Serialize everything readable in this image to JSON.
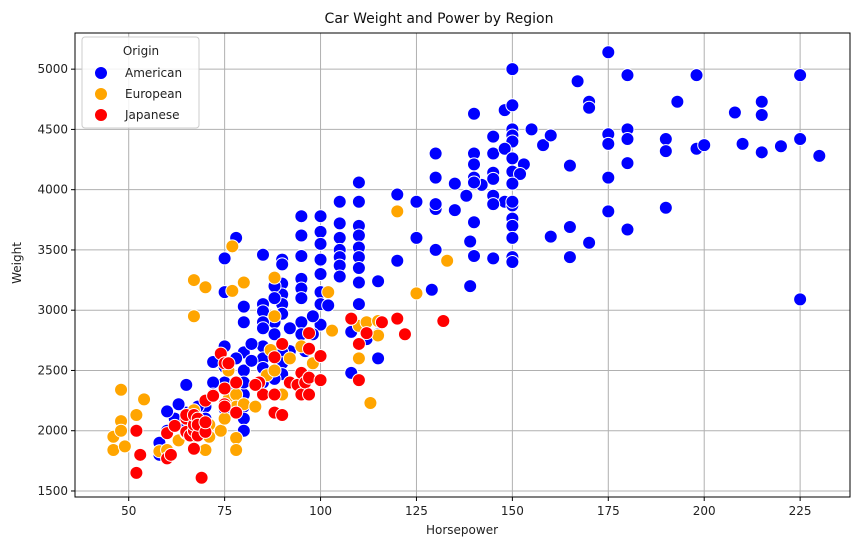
{
  "chart_data": {
    "type": "scatter",
    "title": "Car Weight and Power by Region",
    "xlabel": "Horsepower",
    "ylabel": "Weight",
    "xlim": [
      36,
      238
    ],
    "ylim": [
      1450,
      5300
    ],
    "xticks": [
      50,
      75,
      100,
      125,
      150,
      175,
      200,
      225
    ],
    "yticks": [
      1500,
      2000,
      2500,
      3000,
      3500,
      4000,
      4500,
      5000
    ],
    "grid": true,
    "legend": {
      "title": "Origin",
      "placement": "top-left"
    },
    "series": [
      {
        "name": "American",
        "color": "#0000ff",
        "points": [
          [
            150,
            5000
          ],
          [
            175,
            5140
          ],
          [
            225,
            4950
          ],
          [
            198,
            4950
          ],
          [
            180,
            4950
          ],
          [
            215,
            4730
          ],
          [
            193,
            4730
          ],
          [
            208,
            4640
          ],
          [
            215,
            4620
          ],
          [
            167,
            4900
          ],
          [
            170,
            4730
          ],
          [
            170,
            4680
          ],
          [
            140,
            4630
          ],
          [
            148,
            4660
          ],
          [
            150,
            4700
          ],
          [
            155,
            4500
          ],
          [
            150,
            4500
          ],
          [
            150,
            4450
          ],
          [
            158,
            4370
          ],
          [
            160,
            4450
          ],
          [
            175,
            4460
          ],
          [
            175,
            4380
          ],
          [
            180,
            4500
          ],
          [
            180,
            4420
          ],
          [
            190,
            4420
          ],
          [
            190,
            4320
          ],
          [
            198,
            4340
          ],
          [
            200,
            4370
          ],
          [
            210,
            4380
          ],
          [
            215,
            4310
          ],
          [
            220,
            4360
          ],
          [
            225,
            4420
          ],
          [
            230,
            4280
          ],
          [
            150,
            4400
          ],
          [
            145,
            4440
          ],
          [
            145,
            4300
          ],
          [
            140,
            4300
          ],
          [
            140,
            4210
          ],
          [
            148,
            4340
          ],
          [
            150,
            4260
          ],
          [
            150,
            4150
          ],
          [
            153,
            4210
          ],
          [
            152,
            4130
          ],
          [
            150,
            4050
          ],
          [
            145,
            4140
          ],
          [
            145,
            4090
          ],
          [
            142,
            4040
          ],
          [
            140,
            4100
          ],
          [
            135,
            4050
          ],
          [
            138,
            3950
          ],
          [
            130,
            4300
          ],
          [
            130,
            4100
          ],
          [
            140,
            4060
          ],
          [
            145,
            3950
          ],
          [
            148,
            3900
          ],
          [
            150,
            3870
          ],
          [
            150,
            3760
          ],
          [
            150,
            3700
          ],
          [
            150,
            3900
          ],
          [
            150,
            3600
          ],
          [
            145,
            3880
          ],
          [
            140,
            3730
          ],
          [
            139,
            3570
          ],
          [
            140,
            3450
          ],
          [
            145,
            3430
          ],
          [
            150,
            3440
          ],
          [
            150,
            3400
          ],
          [
            160,
            3610
          ],
          [
            165,
            3690
          ],
          [
            165,
            3440
          ],
          [
            170,
            3560
          ],
          [
            175,
            3820
          ],
          [
            180,
            3670
          ],
          [
            190,
            3850
          ],
          [
            165,
            4200
          ],
          [
            175,
            4100
          ],
          [
            180,
            4220
          ],
          [
            139,
            3200
          ],
          [
            129,
            3170
          ],
          [
            130,
            3500
          ],
          [
            130,
            3840
          ],
          [
            135,
            3830
          ],
          [
            130,
            3880
          ],
          [
            125,
            3900
          ],
          [
            125,
            3600
          ],
          [
            120,
            3960
          ],
          [
            120,
            3410
          ],
          [
            110,
            4060
          ],
          [
            110,
            3900
          ],
          [
            110,
            3700
          ],
          [
            110,
            3620
          ],
          [
            110,
            3520
          ],
          [
            110,
            3440
          ],
          [
            110,
            3350
          ],
          [
            110,
            3230
          ],
          [
            110,
            3050
          ],
          [
            105,
            3900
          ],
          [
            105,
            3720
          ],
          [
            105,
            3600
          ],
          [
            105,
            3500
          ],
          [
            105,
            3440
          ],
          [
            105,
            3370
          ],
          [
            105,
            3280
          ],
          [
            100,
            3780
          ],
          [
            100,
            3650
          ],
          [
            100,
            3550
          ],
          [
            100,
            3420
          ],
          [
            100,
            3300
          ],
          [
            100,
            3150
          ],
          [
            100,
            3050
          ],
          [
            95,
            3780
          ],
          [
            95,
            3620
          ],
          [
            95,
            3450
          ],
          [
            95,
            3260
          ],
          [
            95,
            3180
          ],
          [
            95,
            3100
          ],
          [
            95,
            2900
          ],
          [
            95,
            2800
          ],
          [
            90,
            3420
          ],
          [
            90,
            3380
          ],
          [
            90,
            3220
          ],
          [
            90,
            3130
          ],
          [
            90,
            3050
          ],
          [
            90,
            2970
          ],
          [
            88,
            3200
          ],
          [
            88,
            3100
          ],
          [
            88,
            2900
          ],
          [
            88,
            2800
          ],
          [
            85,
            3460
          ],
          [
            85,
            3050
          ],
          [
            85,
            2990
          ],
          [
            85,
            2900
          ],
          [
            85,
            2850
          ],
          [
            85,
            2700
          ],
          [
            85,
            2600
          ],
          [
            85,
            2520
          ],
          [
            85,
            2400
          ],
          [
            85,
            2300
          ],
          [
            80,
            3030
          ],
          [
            80,
            2900
          ],
          [
            80,
            2650
          ],
          [
            80,
            2500
          ],
          [
            80,
            2300
          ],
          [
            80,
            2200
          ],
          [
            80,
            2100
          ],
          [
            78,
            3600
          ],
          [
            78,
            2600
          ],
          [
            75,
            3430
          ],
          [
            75,
            3150
          ],
          [
            75,
            2700
          ],
          [
            75,
            2530
          ],
          [
            75,
            2400
          ],
          [
            75,
            2180
          ],
          [
            72,
            2570
          ],
          [
            72,
            2400
          ],
          [
            72,
            2300
          ],
          [
            70,
            2200
          ],
          [
            70,
            2100
          ],
          [
            70,
            2000
          ],
          [
            68,
            2200
          ],
          [
            68,
            2100
          ],
          [
            67,
            2000
          ],
          [
            65,
            2380
          ],
          [
            65,
            2150
          ],
          [
            65,
            2050
          ],
          [
            65,
            1980
          ],
          [
            63,
            2220
          ],
          [
            62,
            2100
          ],
          [
            60,
            2160
          ],
          [
            60,
            2000
          ],
          [
            58,
            1900
          ],
          [
            58,
            1800
          ],
          [
            115,
            3240
          ],
          [
            115,
            2800
          ],
          [
            115,
            2600
          ],
          [
            112,
            2900
          ],
          [
            112,
            2760
          ],
          [
            108,
            2820
          ],
          [
            108,
            2480
          ],
          [
            102,
            3040
          ],
          [
            100,
            2880
          ],
          [
            98,
            2950
          ],
          [
            98,
            2800
          ],
          [
            96,
            2660
          ],
          [
            92,
            2850
          ],
          [
            92,
            2660
          ],
          [
            90,
            2650
          ],
          [
            90,
            2560
          ],
          [
            90,
            2470
          ],
          [
            88,
            2430
          ],
          [
            82,
            2720
          ],
          [
            82,
            2580
          ],
          [
            80,
            2400
          ],
          [
            80,
            2000
          ],
          [
            78,
            2260
          ],
          [
            76,
            2320
          ],
          [
            225,
            3090
          ]
        ]
      },
      {
        "name": "European",
        "color": "#ffa500",
        "points": [
          [
            46,
            1840
          ],
          [
            46,
            1950
          ],
          [
            48,
            2340
          ],
          [
            48,
            2080
          ],
          [
            48,
            2000
          ],
          [
            49,
            1870
          ],
          [
            52,
            2130
          ],
          [
            52,
            2000
          ],
          [
            54,
            2260
          ],
          [
            58,
            1830
          ],
          [
            60,
            1840
          ],
          [
            63,
            1920
          ],
          [
            65,
            1980
          ],
          [
            67,
            1950
          ],
          [
            67,
            2170
          ],
          [
            67,
            2950
          ],
          [
            67,
            3250
          ],
          [
            70,
            3190
          ],
          [
            70,
            1840
          ],
          [
            71,
            1950
          ],
          [
            71,
            2050
          ],
          [
            74,
            2000
          ],
          [
            75,
            2100
          ],
          [
            75,
            2230
          ],
          [
            76,
            2260
          ],
          [
            76,
            2500
          ],
          [
            77,
            3160
          ],
          [
            77,
            3530
          ],
          [
            78,
            2300
          ],
          [
            78,
            2200
          ],
          [
            78,
            1940
          ],
          [
            78,
            1840
          ],
          [
            80,
            2220
          ],
          [
            80,
            3230
          ],
          [
            83,
            2200
          ],
          [
            86,
            2460
          ],
          [
            87,
            2670
          ],
          [
            88,
            2950
          ],
          [
            88,
            2500
          ],
          [
            88,
            3270
          ],
          [
            90,
            2300
          ],
          [
            92,
            2600
          ],
          [
            95,
            2700
          ],
          [
            98,
            2560
          ],
          [
            102,
            3150
          ],
          [
            103,
            2830
          ],
          [
            110,
            2600
          ],
          [
            110,
            2870
          ],
          [
            112,
            2900
          ],
          [
            113,
            2230
          ],
          [
            115,
            2790
          ],
          [
            115,
            2910
          ],
          [
            120,
            3820
          ],
          [
            125,
            3140
          ],
          [
            133,
            3410
          ]
        ]
      },
      {
        "name": "Japanese",
        "color": "#ff0000",
        "points": [
          [
            52,
            1650
          ],
          [
            53,
            1800
          ],
          [
            52,
            2000
          ],
          [
            60,
            1770
          ],
          [
            61,
            1800
          ],
          [
            60,
            1980
          ],
          [
            62,
            2040
          ],
          [
            65,
            1990
          ],
          [
            65,
            2100
          ],
          [
            65,
            2130
          ],
          [
            66,
            1960
          ],
          [
            67,
            1850
          ],
          [
            67,
            2000
          ],
          [
            67,
            2050
          ],
          [
            67,
            2130
          ],
          [
            68,
            1960
          ],
          [
            68,
            2100
          ],
          [
            68,
            2050
          ],
          [
            69,
            1610
          ],
          [
            70,
            1990
          ],
          [
            70,
            2070
          ],
          [
            70,
            2250
          ],
          [
            72,
            2290
          ],
          [
            74,
            2640
          ],
          [
            75,
            2350
          ],
          [
            75,
            2560
          ],
          [
            75,
            2220
          ],
          [
            75,
            2200
          ],
          [
            76,
            2560
          ],
          [
            78,
            2150
          ],
          [
            84,
            2400
          ],
          [
            85,
            2300
          ],
          [
            88,
            2150
          ],
          [
            88,
            2300
          ],
          [
            90,
            2130
          ],
          [
            92,
            2400
          ],
          [
            94,
            2380
          ],
          [
            95,
            2480
          ],
          [
            95,
            2300
          ],
          [
            96,
            2400
          ],
          [
            97,
            2680
          ],
          [
            97,
            2440
          ],
          [
            97,
            2300
          ],
          [
            100,
            2620
          ],
          [
            100,
            2420
          ],
          [
            97,
            2810
          ],
          [
            108,
            2930
          ],
          [
            110,
            2720
          ],
          [
            110,
            2420
          ],
          [
            112,
            2810
          ],
          [
            116,
            2900
          ],
          [
            120,
            2930
          ],
          [
            122,
            2800
          ],
          [
            132,
            2910
          ],
          [
            90,
            2720
          ],
          [
            88,
            2610
          ],
          [
            83,
            2380
          ],
          [
            78,
            2400
          ]
        ]
      }
    ]
  }
}
